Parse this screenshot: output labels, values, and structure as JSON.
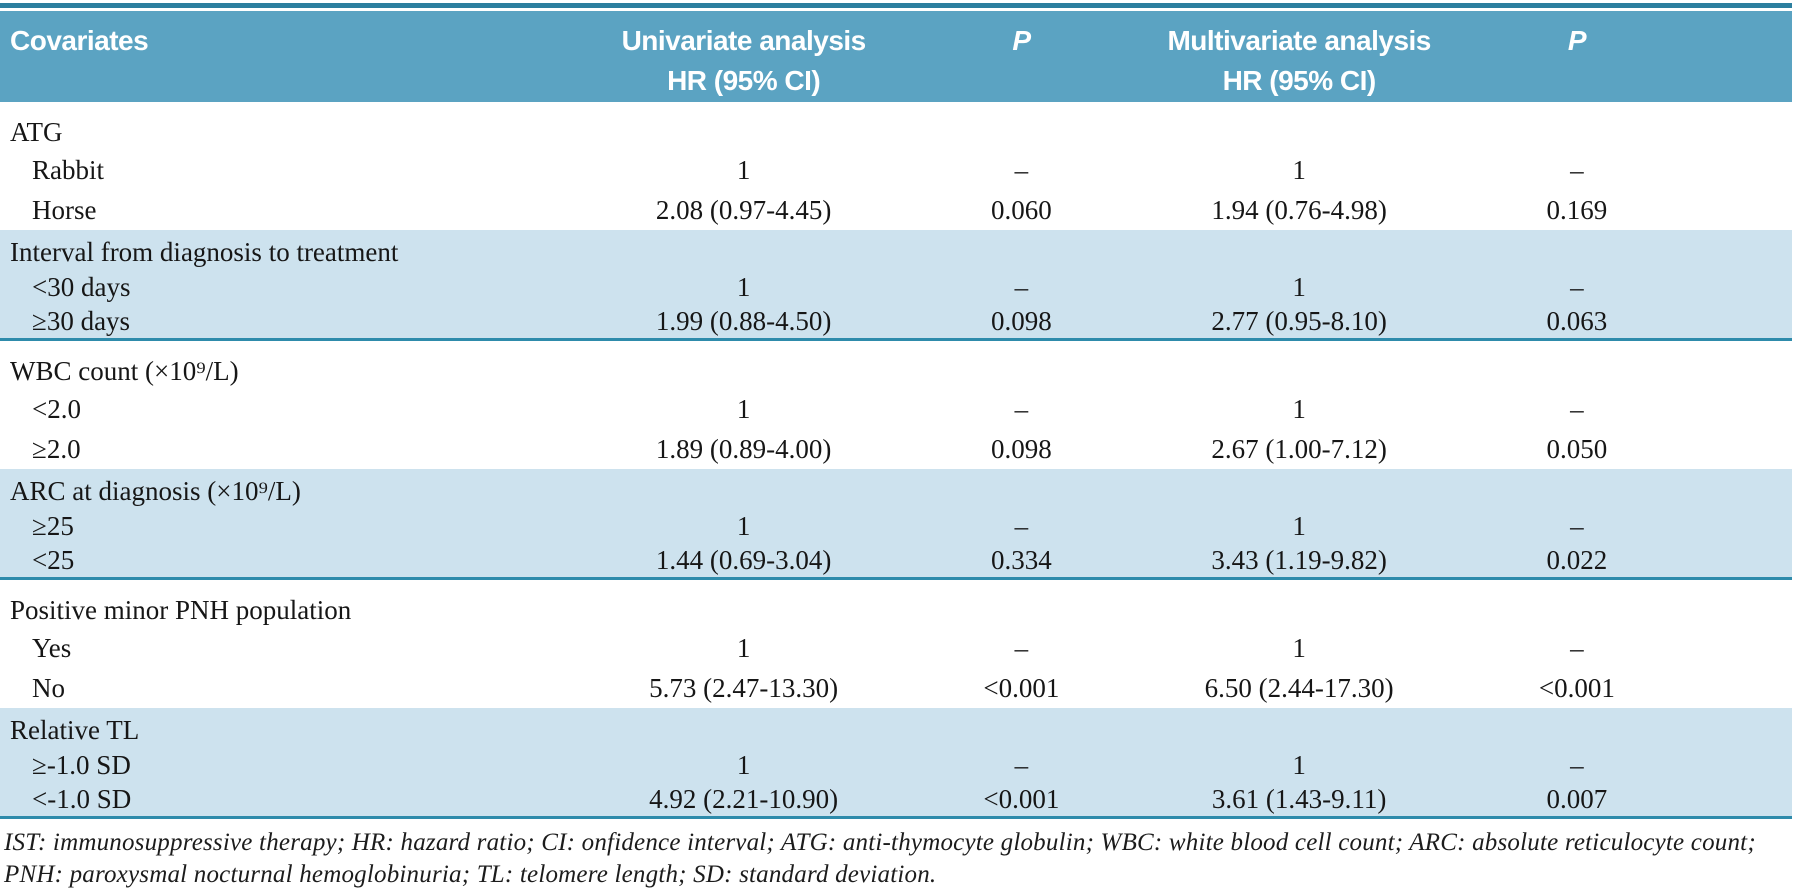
{
  "colors": {
    "header_bg": "#5ba3c2",
    "band_bg": "#cde2ee",
    "rule": "#2e8bab",
    "text": "#161616"
  },
  "table": {
    "header": {
      "covariates": "Covariates",
      "univariate_line1": "Univariate analysis",
      "univariate_line2": "HR (95% CI)",
      "p1": "P",
      "multivariate_line1": "Multivariate analysis",
      "multivariate_line2": "HR (95% CI)",
      "p2": "P"
    },
    "groups": [
      {
        "label": "ATG",
        "shaded": false,
        "rows": [
          {
            "name": "Rabbit",
            "uni": "1",
            "p1": "–",
            "multi": "1",
            "p2": "–"
          },
          {
            "name": "Horse",
            "uni": "2.08 (0.97-4.45)",
            "p1": "0.060",
            "multi": "1.94 (0.76-4.98)",
            "p2": "0.169"
          }
        ]
      },
      {
        "label": "Interval from diagnosis to treatment",
        "shaded": true,
        "rows": [
          {
            "name": "<30 days",
            "uni": "1",
            "p1": "–",
            "multi": "1",
            "p2": "–"
          },
          {
            "name": "≥30 days",
            "uni": "1.99 (0.88-4.50)",
            "p1": "0.098",
            "multi": "2.77 (0.95-8.10)",
            "p2": "0.063"
          }
        ]
      },
      {
        "label": "WBC count (×10⁹/L)",
        "shaded": false,
        "rows": [
          {
            "name": "<2.0",
            "uni": "1",
            "p1": "–",
            "multi": "1",
            "p2": "–"
          },
          {
            "name": "≥2.0",
            "uni": "1.89 (0.89-4.00)",
            "p1": "0.098",
            "multi": "2.67 (1.00-7.12)",
            "p2": "0.050"
          }
        ]
      },
      {
        "label": "ARC at diagnosis (×10⁹/L)",
        "shaded": true,
        "rows": [
          {
            "name": "≥25",
            "uni": "1",
            "p1": "–",
            "multi": "1",
            "p2": "–"
          },
          {
            "name": "<25",
            "uni": "1.44 (0.69-3.04)",
            "p1": "0.334",
            "multi": "3.43 (1.19-9.82)",
            "p2": "0.022"
          }
        ]
      },
      {
        "label": "Positive minor PNH population",
        "shaded": false,
        "rows": [
          {
            "name": "Yes",
            "uni": "1",
            "p1": "–",
            "multi": "1",
            "p2": "–"
          },
          {
            "name": "No",
            "uni": "5.73 (2.47-13.30)",
            "p1": "<0.001",
            "multi": "6.50 (2.44-17.30)",
            "p2": "<0.001"
          }
        ]
      },
      {
        "label": "Relative TL",
        "shaded": true,
        "rows": [
          {
            "name": "≥-1.0 SD",
            "uni": "1",
            "p1": "–",
            "multi": "1",
            "p2": "–"
          },
          {
            "name": "<-1.0 SD",
            "uni": "4.92 (2.21-10.90)",
            "p1": "<0.001",
            "multi": "3.61 (1.43-9.11)",
            "p2": "0.007"
          }
        ]
      }
    ],
    "footnote": "IST: immunosuppressive therapy; HR: hazard ratio; CI: onfidence interval; ATG: anti-thymocyte globulin; WBC: white blood cell count; ARC: absolute reticulocyte count; PNH: paroxysmal nocturnal hemoglobinuria; TL: telomere length; SD: standard deviation."
  }
}
